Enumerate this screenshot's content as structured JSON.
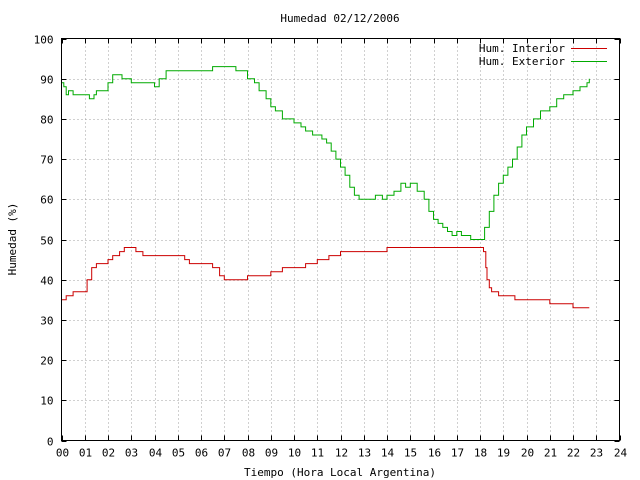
{
  "chart_data": {
    "type": "line",
    "title": "Humedad 02/12/2006",
    "xlabel": "Tiempo (Hora Local Argentina)",
    "ylabel": "Humedad (%)",
    "xlim": [
      0,
      24
    ],
    "ylim": [
      0,
      100
    ],
    "x_ticks": [
      "00",
      "01",
      "02",
      "03",
      "04",
      "05",
      "06",
      "07",
      "08",
      "09",
      "10",
      "11",
      "12",
      "13",
      "14",
      "15",
      "16",
      "17",
      "18",
      "19",
      "20",
      "21",
      "22",
      "23",
      "24"
    ],
    "y_ticks": [
      "0",
      "10",
      "20",
      "30",
      "40",
      "50",
      "60",
      "70",
      "80",
      "90",
      "100"
    ],
    "grid": true,
    "legend_position": "top-right",
    "series": [
      {
        "name": "Hum. Interior",
        "color": "#cc0000",
        "x": [
          0.0,
          0.2,
          0.4,
          0.5,
          1.0,
          1.1,
          1.3,
          1.5,
          2.0,
          2.2,
          2.5,
          2.7,
          3.0,
          3.2,
          3.5,
          4.0,
          4.5,
          5.0,
          5.3,
          5.5,
          6.0,
          6.5,
          6.8,
          7.0,
          7.5,
          8.0,
          8.5,
          9.0,
          9.5,
          10.0,
          10.5,
          11.0,
          11.2,
          11.5,
          12.0,
          12.5,
          13.0,
          13.5,
          14.0,
          15.0,
          16.0,
          17.0,
          17.5,
          18.0,
          18.15,
          18.25,
          18.3,
          18.4,
          18.5,
          18.7,
          18.8,
          19.0,
          19.5,
          20.0,
          20.5,
          21.0,
          21.5,
          22.0,
          22.5,
          22.7
        ],
        "values": [
          35,
          36,
          36,
          37,
          37,
          40,
          43,
          44,
          45,
          46,
          47,
          48,
          48,
          47,
          46,
          46,
          46,
          46,
          45,
          44,
          44,
          43,
          41,
          40,
          40,
          41,
          41,
          42,
          43,
          43,
          44,
          45,
          45,
          46,
          47,
          47,
          47,
          47,
          48,
          48,
          48,
          48,
          48,
          48,
          47,
          43,
          40,
          38,
          37,
          37,
          36,
          36,
          35,
          35,
          35,
          34,
          34,
          33,
          33,
          33
        ]
      },
      {
        "name": "Hum. Exterior",
        "color": "#00aa00",
        "x": [
          0.0,
          0.1,
          0.2,
          0.3,
          0.5,
          1.0,
          1.2,
          1.4,
          1.5,
          1.8,
          2.0,
          2.2,
          2.4,
          2.6,
          3.0,
          3.5,
          4.0,
          4.2,
          4.5,
          5.0,
          5.5,
          6.0,
          6.5,
          7.0,
          7.5,
          7.8,
          8.0,
          8.3,
          8.5,
          8.8,
          9.0,
          9.2,
          9.5,
          10.0,
          10.3,
          10.5,
          10.8,
          11.0,
          11.2,
          11.4,
          11.6,
          11.8,
          12.0,
          12.2,
          12.4,
          12.6,
          12.8,
          13.0,
          13.2,
          13.5,
          13.8,
          14.0,
          14.3,
          14.6,
          14.8,
          15.0,
          15.3,
          15.6,
          15.8,
          16.0,
          16.2,
          16.4,
          16.6,
          16.8,
          17.0,
          17.2,
          17.4,
          17.6,
          18.0,
          18.2,
          18.4,
          18.6,
          18.8,
          19.0,
          19.2,
          19.4,
          19.6,
          19.8,
          20.0,
          20.3,
          20.6,
          21.0,
          21.3,
          21.6,
          22.0,
          22.3,
          22.6,
          22.7
        ],
        "values": [
          89,
          88,
          86,
          87,
          86,
          86,
          85,
          86,
          87,
          87,
          89,
          91,
          91,
          90,
          89,
          89,
          88,
          90,
          92,
          92,
          92,
          92,
          93,
          93,
          92,
          92,
          90,
          89,
          87,
          85,
          83,
          82,
          80,
          79,
          78,
          77,
          76,
          76,
          75,
          74,
          72,
          70,
          68,
          66,
          63,
          61,
          60,
          60,
          60,
          61,
          60,
          61,
          62,
          64,
          63,
          64,
          62,
          60,
          57,
          55,
          54,
          53,
          52,
          51,
          52,
          51,
          51,
          50,
          50,
          53,
          57,
          61,
          64,
          66,
          68,
          70,
          73,
          76,
          78,
          80,
          82,
          83,
          85,
          86,
          87,
          88,
          89,
          90
        ]
      }
    ]
  }
}
